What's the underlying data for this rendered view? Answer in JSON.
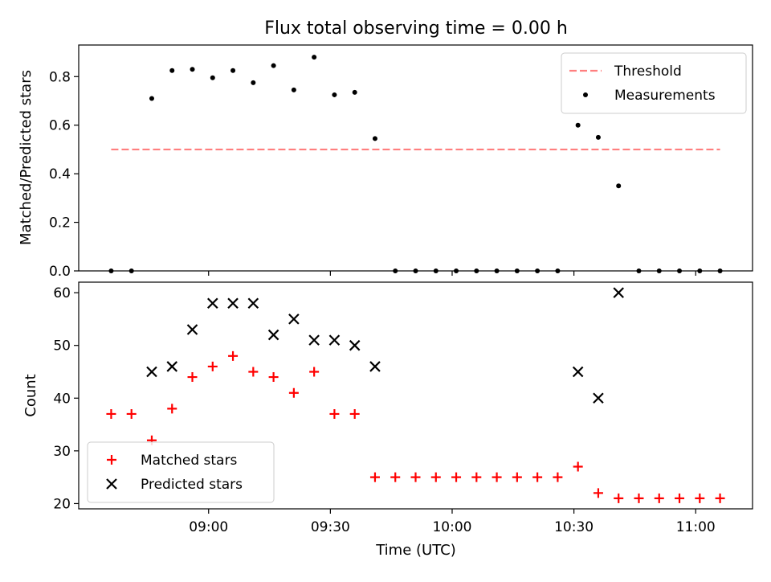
{
  "chart_data": {
    "title": "Flux total observing time = 0.00 h",
    "x_unit": "Time (UTC)",
    "x_times": [
      "08:36",
      "08:41",
      "08:46",
      "08:51",
      "08:56",
      "09:01",
      "09:06",
      "09:11",
      "09:16",
      "09:21",
      "09:26",
      "09:31",
      "09:36",
      "09:41",
      "09:46",
      "09:51",
      "09:56",
      "10:01",
      "10:06",
      "10:11",
      "10:16",
      "10:21",
      "10:26",
      "10:31",
      "10:36",
      "10:41",
      "10:46",
      "10:51",
      "10:56",
      "11:01",
      "11:06"
    ],
    "xlabel": "Time (UTC)",
    "xlim": [
      "08:28",
      "11:14"
    ],
    "xticks": [
      {
        "time": "09:00",
        "label": "09:00"
      },
      {
        "time": "09:30",
        "label": "09:30"
      },
      {
        "time": "10:00",
        "label": "10:00"
      },
      {
        "time": "10:30",
        "label": "10:30"
      },
      {
        "time": "11:00",
        "label": "11:00"
      }
    ],
    "panels": [
      {
        "type": "scatter",
        "ylabel": "Matched/Predicted stars",
        "ylim": [
          0,
          0.93
        ],
        "yticks": [
          "0.0",
          "0.2",
          "0.4",
          "0.6",
          "0.8"
        ],
        "legend_position": "upper right",
        "threshold": {
          "name": "Threshold",
          "value": 0.5,
          "color": "#ff7f7f",
          "x_range": [
            "08:36",
            "11:06"
          ]
        },
        "series": [
          {
            "name": "Measurements",
            "marker": "dot",
            "color": "#000000",
            "values": [
              0.0,
              0.0,
              0.71,
              0.825,
              0.83,
              0.795,
              0.825,
              0.775,
              0.845,
              0.745,
              0.88,
              0.725,
              0.735,
              0.545,
              0.0,
              0.0,
              0.0,
              0.0,
              0.0,
              0.0,
              0.0,
              0.0,
              0.0,
              0.6,
              0.55,
              0.35,
              0.0,
              0.0,
              0.0,
              0.0,
              0.0
            ]
          }
        ]
      },
      {
        "type": "scatter",
        "ylabel": "Count",
        "ylim": [
          19,
          62
        ],
        "yticks": [
          "20",
          "30",
          "40",
          "50",
          "60"
        ],
        "legend_position": "lower left",
        "series": [
          {
            "name": "Matched stars",
            "marker": "plus",
            "color": "#ff0000",
            "values": [
              37,
              37,
              32,
              38,
              44,
              46,
              48,
              45,
              44,
              41,
              45,
              37,
              37,
              25,
              25,
              25,
              25,
              25,
              25,
              25,
              25,
              25,
              25,
              27,
              22,
              21,
              21,
              21,
              21,
              21,
              21
            ]
          },
          {
            "name": "Predicted stars",
            "marker": "x",
            "color": "#000000",
            "values": [
              null,
              null,
              45,
              46,
              53,
              58,
              58,
              58,
              52,
              55,
              51,
              51,
              50,
              46,
              null,
              null,
              null,
              null,
              null,
              null,
              null,
              null,
              null,
              45,
              40,
              60,
              null,
              null,
              null,
              null,
              null
            ]
          }
        ]
      }
    ]
  }
}
